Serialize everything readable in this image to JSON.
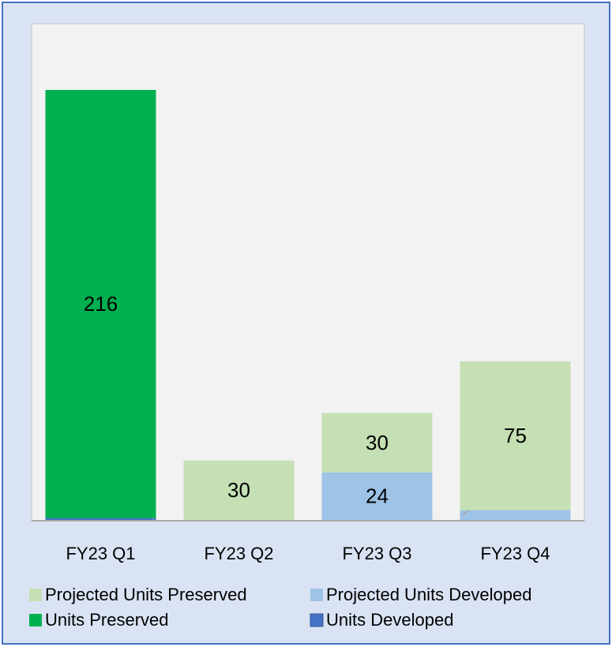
{
  "chart_data": {
    "type": "stacked_bar",
    "categories": [
      "FY23 Q1",
      "FY23 Q2",
      "FY23 Q3",
      "FY23 Q4"
    ],
    "series": [
      {
        "name": "Units Developed",
        "color": "#4472c4",
        "values": [
          1,
          null,
          null,
          null
        ]
      },
      {
        "name": "Units Preserved",
        "color": "#00b050",
        "values": [
          216,
          null,
          null,
          null
        ]
      },
      {
        "name": "Projected Units Developed",
        "color": "#9dc3e6",
        "values": [
          null,
          null,
          24,
          5
        ]
      },
      {
        "name": "Projected Units Preserved",
        "color": "#c5e0b4",
        "values": [
          null,
          30,
          30,
          75
        ]
      }
    ]
  }
}
